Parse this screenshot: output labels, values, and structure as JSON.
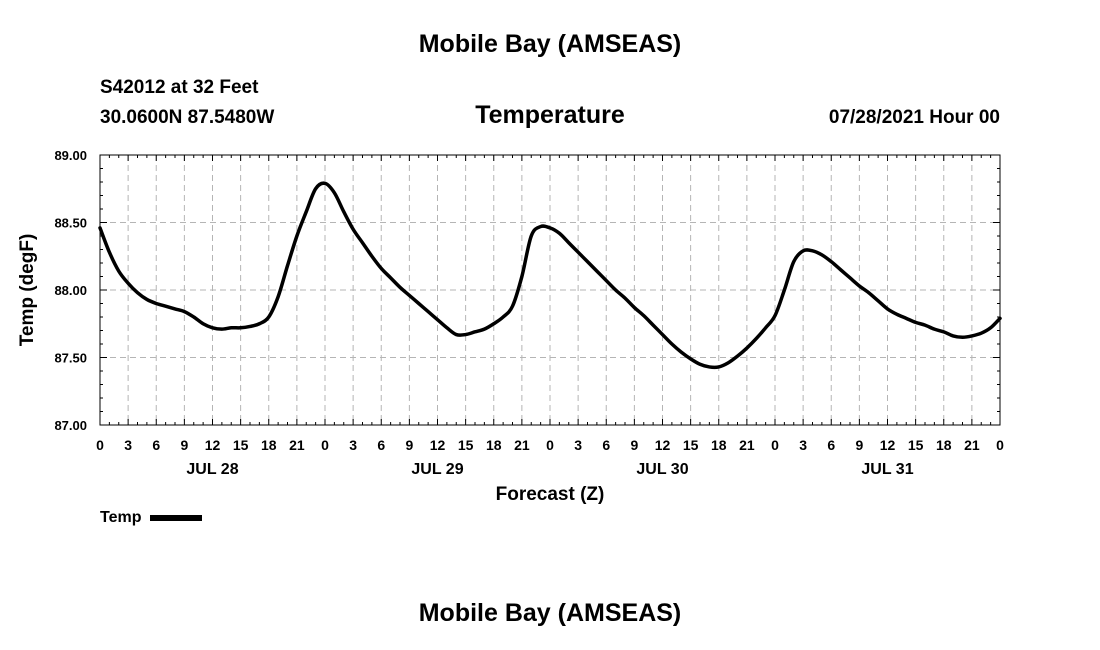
{
  "header": {
    "title": "Mobile Bay (AMSEAS)",
    "station": "S42012 at 32 Feet",
    "coords": "30.0600N  87.5480W",
    "chart_title": "Temperature",
    "run_time": "07/28/2021 Hour 00"
  },
  "footer": {
    "title": "Mobile Bay (AMSEAS)"
  },
  "legend": {
    "label": "Temp"
  },
  "chart_data": {
    "type": "line",
    "title": "Temperature",
    "xlabel": "Forecast (Z)",
    "ylabel": "Temp (degF)",
    "ylim": [
      87.0,
      89.0
    ],
    "xlim": [
      0,
      96
    ],
    "grid": true,
    "y_ticks": [
      "87.00",
      "87.50",
      "88.00",
      "88.50",
      "89.00"
    ],
    "x_tick_labels": [
      "0",
      "3",
      "6",
      "9",
      "12",
      "15",
      "18",
      "21",
      "0",
      "3",
      "6",
      "9",
      "12",
      "15",
      "18",
      "21",
      "0",
      "3",
      "6",
      "9",
      "12",
      "15",
      "18",
      "21",
      "0",
      "3",
      "6",
      "9",
      "12",
      "15",
      "18",
      "21",
      "0"
    ],
    "day_labels": [
      "JUL 28",
      "JUL 29",
      "JUL 30",
      "JUL 31"
    ],
    "legend_position": "bottom-left",
    "series": [
      {
        "name": "Temp",
        "x": [
          0,
          1,
          2,
          3,
          4,
          5,
          6,
          7,
          8,
          9,
          10,
          11,
          12,
          13,
          14,
          15,
          16,
          17,
          18,
          19,
          20,
          21,
          22,
          23,
          24,
          25,
          26,
          27,
          28,
          29,
          30,
          31,
          32,
          33,
          34,
          35,
          36,
          37,
          38,
          39,
          40,
          41,
          42,
          43,
          44,
          45,
          46,
          47,
          48,
          49,
          50,
          51,
          52,
          53,
          54,
          55,
          56,
          57,
          58,
          59,
          60,
          61,
          62,
          63,
          64,
          65,
          66,
          67,
          68,
          69,
          70,
          71,
          72,
          73,
          74,
          75,
          76,
          77,
          78,
          79,
          80,
          81,
          82,
          83,
          84,
          85,
          86,
          87,
          88,
          89,
          90,
          91,
          92,
          93,
          94,
          95,
          96
        ],
        "values": [
          88.46,
          88.28,
          88.14,
          88.05,
          87.98,
          87.93,
          87.9,
          87.88,
          87.86,
          87.84,
          87.8,
          87.75,
          87.72,
          87.71,
          87.72,
          87.72,
          87.73,
          87.75,
          87.8,
          87.95,
          88.18,
          88.4,
          88.58,
          88.75,
          88.79,
          88.72,
          88.58,
          88.45,
          88.35,
          88.25,
          88.16,
          88.09,
          88.02,
          87.96,
          87.9,
          87.84,
          87.78,
          87.72,
          87.67,
          87.67,
          87.69,
          87.71,
          87.75,
          87.8,
          87.88,
          88.1,
          88.4,
          88.47,
          88.46,
          88.42,
          88.35,
          88.28,
          88.21,
          88.14,
          88.07,
          88.0,
          87.94,
          87.87,
          87.81,
          87.74,
          87.67,
          87.6,
          87.54,
          87.49,
          87.45,
          87.43,
          87.43,
          87.46,
          87.51,
          87.57,
          87.64,
          87.72,
          87.81,
          88.0,
          88.21,
          88.29,
          88.29,
          88.26,
          88.21,
          88.15,
          88.09,
          88.03,
          87.98,
          87.92,
          87.86,
          87.82,
          87.79,
          87.76,
          87.74,
          87.71,
          87.69,
          87.66,
          87.65,
          87.66,
          87.68,
          87.72,
          87.79
        ]
      }
    ]
  }
}
